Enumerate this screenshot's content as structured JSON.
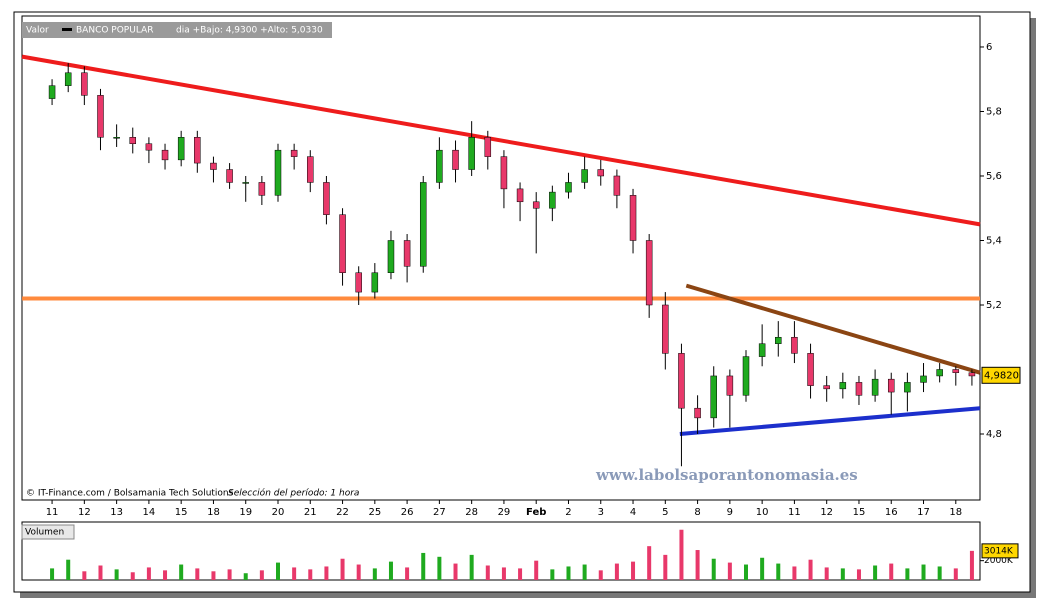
{
  "chart_data": {
    "type": "candlestick",
    "instrument_label": "Valor",
    "instrument": "BANCO POPULAR",
    "day_range": "dia +Bajo: 4,9300 +Alto: 5,0330",
    "footer": "© IT-Finance.com / Bolsamania Tech Solutions",
    "period": "Selección del período: 1 hora",
    "watermark": "www.labolsaporantonomasia.es",
    "categories": [
      "11",
      null,
      "12",
      null,
      "13",
      null,
      "14",
      null,
      "15",
      null,
      "18",
      null,
      "19",
      null,
      "20",
      null,
      "21",
      null,
      "22",
      null,
      "25",
      null,
      "26",
      null,
      "27",
      null,
      "28",
      null,
      "29",
      null,
      "Feb",
      null,
      "2",
      null,
      "3",
      null,
      "4",
      null,
      "5",
      null,
      "8",
      null,
      "9",
      null,
      "10",
      null,
      "11",
      null,
      "12",
      null,
      "15",
      null,
      "16",
      null,
      "17",
      null,
      "18",
      null
    ],
    "open": [
      5.84,
      5.88,
      5.92,
      5.85,
      5.72,
      5.72,
      5.7,
      5.68,
      5.65,
      5.72,
      5.64,
      5.62,
      5.58,
      5.58,
      5.54,
      5.68,
      5.66,
      5.58,
      5.48,
      5.3,
      5.24,
      5.3,
      5.4,
      5.32,
      5.58,
      5.68,
      5.62,
      5.72,
      5.66,
      5.56,
      5.52,
      5.5,
      5.55,
      5.58,
      5.62,
      5.6,
      5.54,
      5.4,
      5.2,
      5.05,
      4.88,
      4.85,
      4.98,
      4.92,
      5.04,
      5.08,
      5.1,
      5.05,
      4.95,
      4.94,
      4.96,
      4.92,
      4.97,
      4.93,
      4.96,
      4.98,
      5.0,
      4.99
    ],
    "high": [
      5.9,
      5.95,
      5.94,
      5.87,
      5.76,
      5.75,
      5.72,
      5.7,
      5.74,
      5.74,
      5.66,
      5.64,
      5.6,
      5.6,
      5.7,
      5.7,
      5.68,
      5.6,
      5.5,
      5.32,
      5.33,
      5.43,
      5.42,
      5.6,
      5.72,
      5.71,
      5.77,
      5.74,
      5.68,
      5.58,
      5.55,
      5.57,
      5.61,
      5.66,
      5.65,
      5.62,
      5.56,
      5.42,
      5.24,
      5.08,
      4.92,
      5.01,
      5.0,
      5.06,
      5.14,
      5.15,
      5.15,
      5.08,
      4.98,
      4.99,
      4.98,
      5.0,
      4.99,
      4.99,
      5.02,
      5.02,
      5.01,
      5.0
    ],
    "low": [
      5.82,
      5.86,
      5.82,
      5.68,
      5.69,
      5.67,
      5.64,
      5.62,
      5.63,
      5.61,
      5.58,
      5.56,
      5.52,
      5.51,
      5.52,
      5.62,
      5.55,
      5.45,
      5.26,
      5.2,
      5.22,
      5.28,
      5.27,
      5.3,
      5.56,
      5.58,
      5.6,
      5.62,
      5.5,
      5.46,
      5.36,
      5.46,
      5.53,
      5.56,
      5.57,
      5.5,
      5.36,
      5.16,
      5.0,
      4.7,
      4.8,
      4.82,
      4.82,
      4.9,
      5.01,
      5.04,
      5.02,
      4.91,
      4.9,
      4.91,
      4.89,
      4.9,
      4.86,
      4.87,
      4.93,
      4.96,
      4.95,
      4.95
    ],
    "close": [
      5.88,
      5.92,
      5.85,
      5.72,
      5.72,
      5.7,
      5.68,
      5.65,
      5.72,
      5.64,
      5.62,
      5.58,
      5.58,
      5.54,
      5.68,
      5.66,
      5.58,
      5.48,
      5.3,
      5.24,
      5.3,
      5.4,
      5.32,
      5.58,
      5.68,
      5.62,
      5.72,
      5.66,
      5.56,
      5.52,
      5.5,
      5.55,
      5.58,
      5.62,
      5.6,
      5.54,
      5.4,
      5.2,
      5.05,
      4.88,
      4.85,
      4.98,
      4.92,
      5.04,
      5.08,
      5.1,
      5.05,
      4.95,
      4.94,
      4.96,
      4.92,
      4.97,
      4.93,
      4.96,
      4.98,
      5.0,
      4.99,
      4.98
    ],
    "up_color": "#1faa1f",
    "down_color": "#e8386a",
    "ylim": [
      4.6,
      6.03
    ],
    "yticks": [
      6,
      {
        "value": 5.8,
        "label": "5,8"
      },
      {
        "value": 5.6,
        "label": "5,6"
      },
      {
        "value": 5.4,
        "label": "5,4"
      },
      {
        "value": 5.2,
        "label": "5,2"
      },
      {
        "value": 4.8,
        "label": "4,8"
      }
    ],
    "last_price": {
      "value": 4.982,
      "label": "4,9820"
    },
    "trend_lines": [
      {
        "color": "#ee1c1c",
        "start": [
          -1.86,
          5.97
        ],
        "end": [
          57.5,
          5.45
        ]
      },
      {
        "color": "#ff8a3d",
        "start": [
          -1.86,
          5.22
        ],
        "end": [
          57.5,
          5.22
        ]
      },
      {
        "color": "#8b4513",
        "start": [
          39.3,
          5.26
        ],
        "end": [
          57.5,
          4.99
        ]
      },
      {
        "color": "#1c2fcc",
        "start": [
          38.9,
          4.8
        ],
        "end": [
          57.5,
          4.88
        ]
      }
    ],
    "volume_label": "Volumen",
    "volume": [
      1200,
      2100,
      900,
      1500,
      1100,
      800,
      1300,
      1000,
      1600,
      1200,
      900,
      1100,
      700,
      1000,
      1800,
      1300,
      1100,
      1400,
      2200,
      1600,
      1200,
      1900,
      1300,
      2800,
      2400,
      1700,
      2600,
      1500,
      1300,
      1200,
      2000,
      1100,
      1400,
      1600,
      1000,
      1700,
      1900,
      3500,
      2600,
      5200,
      3100,
      2200,
      1800,
      1600,
      2300,
      1700,
      1400,
      2100,
      1300,
      1200,
      1100,
      1500,
      1700,
      1200,
      1600,
      1400,
      1200,
      3014
    ],
    "volume_ylim": [
      0,
      6000
    ],
    "volume_ticks": [
      {
        "value": 2000,
        "label": "2000K"
      }
    ],
    "volume_last": {
      "value": 3014,
      "label": "3014K"
    }
  }
}
